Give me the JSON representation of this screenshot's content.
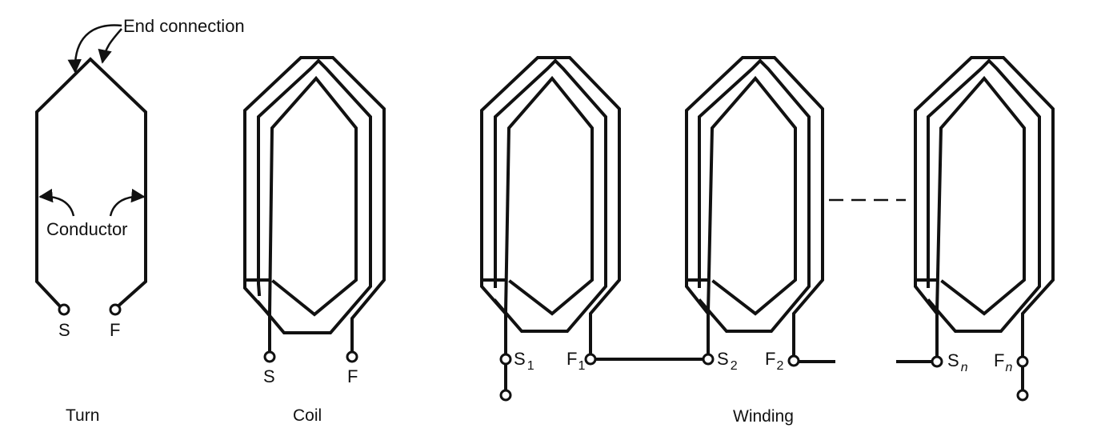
{
  "annotations": {
    "end_connection": "End connection",
    "conductor": "Conductor"
  },
  "captions": {
    "turn": "Turn",
    "coil": "Coil",
    "winding": "Winding"
  },
  "terminals": {
    "turn_start": "S",
    "turn_finish": "F",
    "coil_start": "S",
    "coil_finish": "F",
    "s1_letter": "S",
    "s1_sub": "1",
    "f1_letter": "F",
    "f1_sub": "1",
    "s2_letter": "S",
    "s2_sub": "2",
    "f2_letter": "F",
    "f2_sub": "2",
    "sn_letter": "S",
    "sn_sub": "n",
    "fn_letter": "F",
    "fn_sub": "n"
  }
}
